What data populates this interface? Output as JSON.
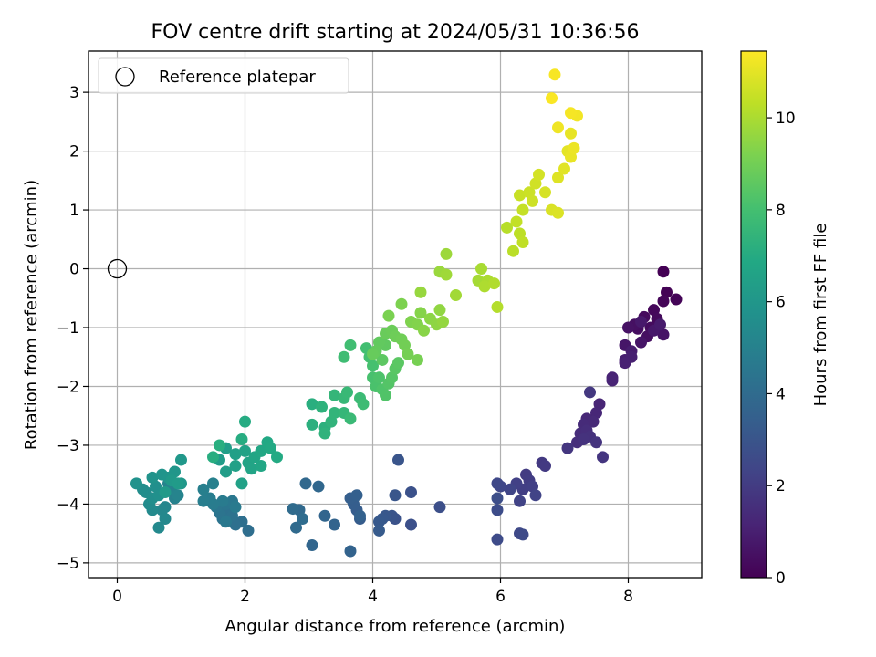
{
  "chart_data": {
    "type": "scatter",
    "title": "FOV centre drift starting at 2024/05/31 10:36:56",
    "xlabel": "Angular distance from reference (arcmin)",
    "ylabel": "Rotation from reference (arcmin)",
    "xlim": [
      -0.45,
      9.15
    ],
    "ylim": [
      -5.25,
      3.7
    ],
    "xticks": [
      0,
      2,
      4,
      6,
      8
    ],
    "yticks": [
      -5,
      -4,
      -3,
      -2,
      -1,
      0,
      1,
      2,
      3
    ],
    "grid": true,
    "legend": {
      "position": "top-left",
      "entries": [
        "Reference platepar"
      ]
    },
    "colorbar": {
      "label": "Hours from first FF file",
      "range": [
        0,
        11.45
      ],
      "ticks": [
        0,
        2,
        4,
        6,
        8,
        10
      ],
      "colormap": "viridis"
    },
    "reference_point": {
      "name": "Reference platepar",
      "x": 0,
      "y": 0
    },
    "points": [
      [
        8.55,
        -0.05,
        0.0
      ],
      [
        8.6,
        -0.4,
        0.05
      ],
      [
        8.75,
        -0.52,
        0.1
      ],
      [
        8.55,
        -0.55,
        0.15
      ],
      [
        8.4,
        -0.7,
        0.2
      ],
      [
        8.45,
        -0.85,
        0.25
      ],
      [
        8.25,
        -0.82,
        0.3
      ],
      [
        8.35,
        -1.0,
        0.35
      ],
      [
        8.15,
        -1.02,
        0.4
      ],
      [
        8.3,
        -1.15,
        0.45
      ],
      [
        8.1,
        -0.95,
        0.5
      ],
      [
        8.0,
        -1.0,
        0.55
      ],
      [
        8.55,
        -1.12,
        0.6
      ],
      [
        8.2,
        -1.25,
        0.65
      ],
      [
        7.95,
        -1.3,
        0.7
      ],
      [
        8.4,
        -1.05,
        0.75
      ],
      [
        8.2,
        -0.9,
        0.8
      ],
      [
        8.5,
        -0.95,
        0.85
      ],
      [
        8.05,
        -1.4,
        0.9
      ],
      [
        7.95,
        -1.55,
        0.95
      ],
      [
        8.05,
        -1.5,
        1.0
      ],
      [
        7.95,
        -1.6,
        1.05
      ],
      [
        7.75,
        -1.85,
        1.1
      ],
      [
        7.75,
        -1.9,
        1.15
      ],
      [
        7.55,
        -2.3,
        1.2
      ],
      [
        7.5,
        -2.45,
        1.25
      ],
      [
        7.35,
        -2.55,
        1.3
      ],
      [
        7.45,
        -2.6,
        1.35
      ],
      [
        7.3,
        -2.65,
        1.4
      ],
      [
        7.25,
        -2.8,
        1.45
      ],
      [
        7.35,
        -2.75,
        1.5
      ],
      [
        7.2,
        -2.95,
        1.55
      ],
      [
        7.4,
        -2.85,
        1.6
      ],
      [
        7.3,
        -2.9,
        1.65
      ],
      [
        7.5,
        -2.95,
        1.7
      ],
      [
        7.6,
        -3.2,
        1.75
      ],
      [
        7.05,
        -3.05,
        1.8
      ],
      [
        7.4,
        -2.1,
        1.85
      ],
      [
        6.65,
        -3.3,
        1.9
      ],
      [
        6.7,
        -3.35,
        1.95
      ],
      [
        6.4,
        -3.5,
        2.0
      ],
      [
        6.45,
        -3.6,
        2.05
      ],
      [
        6.35,
        -3.75,
        2.1
      ],
      [
        6.5,
        -3.7,
        2.15
      ],
      [
        6.25,
        -3.65,
        2.2
      ],
      [
        6.3,
        -3.95,
        2.25
      ],
      [
        6.55,
        -3.85,
        2.3
      ],
      [
        6.15,
        -3.75,
        2.35
      ],
      [
        6.0,
        -3.7,
        2.4
      ],
      [
        5.95,
        -3.65,
        2.45
      ],
      [
        6.3,
        -4.5,
        2.5
      ],
      [
        6.35,
        -4.52,
        2.55
      ],
      [
        5.95,
        -4.6,
        2.6
      ],
      [
        5.95,
        -4.1,
        2.65
      ],
      [
        5.95,
        -3.9,
        2.7
      ],
      [
        5.05,
        -4.05,
        2.75
      ],
      [
        4.6,
        -4.35,
        2.8
      ],
      [
        4.6,
        -3.8,
        2.85
      ],
      [
        4.35,
        -4.25,
        2.9
      ],
      [
        4.3,
        -4.2,
        2.95
      ],
      [
        4.4,
        -3.25,
        3.0
      ],
      [
        4.35,
        -3.85,
        3.05
      ],
      [
        4.2,
        -4.2,
        3.1
      ],
      [
        4.15,
        -4.25,
        3.15
      ],
      [
        4.1,
        -4.3,
        3.2
      ],
      [
        4.1,
        -4.45,
        3.25
      ],
      [
        3.8,
        -4.25,
        3.3
      ],
      [
        3.75,
        -4.1,
        3.35
      ],
      [
        3.7,
        -4.0,
        3.4
      ],
      [
        3.65,
        -3.9,
        3.45
      ],
      [
        3.75,
        -3.85,
        3.5
      ],
      [
        3.8,
        -4.2,
        3.55
      ],
      [
        3.65,
        -4.8,
        3.6
      ],
      [
        3.4,
        -4.35,
        3.65
      ],
      [
        3.25,
        -4.2,
        3.7
      ],
      [
        3.05,
        -4.7,
        3.75
      ],
      [
        3.15,
        -3.7,
        3.8
      ],
      [
        2.95,
        -3.65,
        3.85
      ],
      [
        2.85,
        -4.1,
        3.9
      ],
      [
        2.8,
        -4.4,
        3.95
      ],
      [
        2.75,
        -4.08,
        4.0
      ],
      [
        2.9,
        -4.25,
        4.05
      ],
      [
        2.05,
        -4.45,
        4.1
      ],
      [
        1.95,
        -4.3,
        4.15
      ],
      [
        1.85,
        -4.35,
        4.2
      ],
      [
        1.75,
        -4.1,
        4.25
      ],
      [
        1.8,
        -4.2,
        4.3
      ],
      [
        1.65,
        -4.25,
        4.35
      ],
      [
        1.6,
        -4.15,
        4.4
      ],
      [
        1.7,
        -4.0,
        4.45
      ],
      [
        1.55,
        -4.05,
        4.5
      ],
      [
        1.8,
        -3.95,
        4.55
      ],
      [
        1.7,
        -4.3,
        4.6
      ],
      [
        1.85,
        -4.05,
        4.65
      ],
      [
        1.65,
        -3.95,
        4.7
      ],
      [
        1.5,
        -4.0,
        4.75
      ],
      [
        1.45,
        -3.9,
        4.8
      ],
      [
        1.35,
        -3.95,
        4.85
      ],
      [
        1.35,
        -3.75,
        4.9
      ],
      [
        1.5,
        -3.65,
        4.95
      ],
      [
        0.9,
        -3.9,
        5.0
      ],
      [
        0.85,
        -3.75,
        5.05
      ],
      [
        0.8,
        -3.65,
        5.1
      ],
      [
        0.95,
        -3.85,
        5.15
      ],
      [
        0.75,
        -4.05,
        5.2
      ],
      [
        0.7,
        -4.1,
        5.25
      ],
      [
        0.75,
        -4.25,
        5.3
      ],
      [
        0.65,
        -4.4,
        5.35
      ],
      [
        0.55,
        -4.1,
        5.4
      ],
      [
        0.5,
        -4.0,
        5.45
      ],
      [
        0.45,
        -3.8,
        5.5
      ],
      [
        0.4,
        -3.75,
        5.55
      ],
      [
        0.55,
        -3.9,
        5.6
      ],
      [
        0.6,
        -3.7,
        5.65
      ],
      [
        0.65,
        -3.85,
        5.7
      ],
      [
        0.3,
        -3.65,
        5.75
      ],
      [
        0.55,
        -3.55,
        5.8
      ],
      [
        0.7,
        -3.5,
        5.85
      ],
      [
        0.8,
        -3.55,
        5.9
      ],
      [
        0.9,
        -3.45,
        5.95
      ],
      [
        1.0,
        -3.65,
        6.0
      ],
      [
        1.0,
        -3.25,
        6.05
      ],
      [
        0.85,
        -3.6,
        6.1
      ],
      [
        0.75,
        -3.8,
        6.15
      ],
      [
        0.95,
        -3.65,
        6.2
      ],
      [
        1.6,
        -3.25,
        6.25
      ],
      [
        1.7,
        -3.45,
        6.3
      ],
      [
        1.7,
        -3.05,
        6.35
      ],
      [
        1.85,
        -3.15,
        6.4
      ],
      [
        1.85,
        -3.35,
        6.45
      ],
      [
        1.95,
        -3.65,
        6.5
      ],
      [
        2.0,
        -3.1,
        6.55
      ],
      [
        2.05,
        -3.3,
        6.6
      ],
      [
        2.1,
        -3.4,
        6.65
      ],
      [
        2.15,
        -3.2,
        6.7
      ],
      [
        2.25,
        -3.35,
        6.75
      ],
      [
        2.25,
        -3.1,
        6.8
      ],
      [
        2.35,
        -2.95,
        6.85
      ],
      [
        2.4,
        -3.05,
        6.9
      ],
      [
        2.5,
        -3.2,
        6.95
      ],
      [
        2.0,
        -2.6,
        7.0
      ],
      [
        1.95,
        -2.9,
        7.05
      ],
      [
        1.5,
        -3.2,
        7.1
      ],
      [
        1.6,
        -3.0,
        7.15
      ],
      [
        3.05,
        -2.3,
        7.15
      ],
      [
        3.05,
        -2.65,
        7.2
      ],
      [
        3.25,
        -2.7,
        7.25
      ],
      [
        3.2,
        -2.35,
        7.3
      ],
      [
        3.25,
        -2.8,
        7.35
      ],
      [
        3.35,
        -2.6,
        7.4
      ],
      [
        3.4,
        -2.45,
        7.45
      ],
      [
        3.4,
        -2.15,
        7.5
      ],
      [
        3.55,
        -2.45,
        7.55
      ],
      [
        3.55,
        -2.2,
        7.6
      ],
      [
        3.6,
        -2.1,
        7.65
      ],
      [
        3.65,
        -2.55,
        7.7
      ],
      [
        3.8,
        -2.2,
        7.75
      ],
      [
        3.85,
        -2.3,
        7.8
      ],
      [
        3.55,
        -1.5,
        7.85
      ],
      [
        3.65,
        -1.3,
        7.9
      ],
      [
        3.9,
        -1.35,
        7.95
      ],
      [
        3.95,
        -1.5,
        8.0
      ],
      [
        4.0,
        -1.65,
        8.05
      ],
      [
        4.0,
        -1.85,
        8.1
      ],
      [
        4.05,
        -2.0,
        8.15
      ],
      [
        4.1,
        -1.85,
        8.2
      ],
      [
        4.15,
        -2.05,
        8.25
      ],
      [
        4.2,
        -2.15,
        8.3
      ],
      [
        4.25,
        -1.95,
        8.35
      ],
      [
        4.3,
        -1.85,
        8.4
      ],
      [
        4.35,
        -1.7,
        8.45
      ],
      [
        4.4,
        -1.6,
        8.5
      ],
      [
        4.15,
        -1.55,
        8.55
      ],
      [
        4.2,
        -1.3,
        8.6
      ],
      [
        4.1,
        -1.25,
        8.65
      ],
      [
        4.05,
        -1.4,
        8.7
      ],
      [
        4.0,
        -1.45,
        8.75
      ],
      [
        4.2,
        -1.1,
        8.8
      ],
      [
        4.3,
        -1.05,
        8.85
      ],
      [
        4.35,
        -1.15,
        8.9
      ],
      [
        4.45,
        -1.2,
        8.95
      ],
      [
        4.5,
        -1.3,
        9.0
      ],
      [
        4.55,
        -1.45,
        9.05
      ],
      [
        4.7,
        -1.55,
        9.1
      ],
      [
        4.25,
        -0.8,
        9.15
      ],
      [
        4.45,
        -0.6,
        9.2
      ],
      [
        4.6,
        -0.9,
        9.25
      ],
      [
        4.7,
        -0.95,
        9.3
      ],
      [
        4.75,
        -0.75,
        9.35
      ],
      [
        4.8,
        -1.05,
        9.4
      ],
      [
        4.9,
        -0.85,
        9.45
      ],
      [
        5.0,
        -0.95,
        9.5
      ],
      [
        5.05,
        -0.7,
        9.55
      ],
      [
        5.1,
        -0.9,
        9.6
      ],
      [
        4.75,
        -0.4,
        9.65
      ],
      [
        5.05,
        -0.05,
        9.7
      ],
      [
        5.15,
        0.25,
        9.75
      ],
      [
        5.15,
        -0.1,
        9.8
      ],
      [
        5.3,
        -0.45,
        9.85
      ],
      [
        5.65,
        -0.2,
        9.9
      ],
      [
        5.7,
        0.0,
        9.95
      ],
      [
        5.8,
        -0.2,
        10.0
      ],
      [
        5.75,
        -0.3,
        10.05
      ],
      [
        5.9,
        -0.25,
        10.1
      ],
      [
        5.95,
        -0.65,
        10.15
      ],
      [
        6.1,
        0.7,
        10.2
      ],
      [
        6.2,
        0.3,
        10.25
      ],
      [
        6.3,
        0.6,
        10.3
      ],
      [
        6.35,
        0.45,
        10.35
      ],
      [
        6.25,
        0.8,
        10.4
      ],
      [
        6.35,
        1.0,
        10.45
      ],
      [
        6.3,
        1.25,
        10.5
      ],
      [
        6.45,
        1.3,
        10.55
      ],
      [
        6.5,
        1.15,
        10.6
      ],
      [
        6.55,
        1.45,
        10.65
      ],
      [
        6.6,
        1.6,
        10.7
      ],
      [
        6.7,
        1.3,
        10.75
      ],
      [
        6.8,
        1.0,
        10.8
      ],
      [
        6.9,
        0.95,
        10.85
      ],
      [
        6.9,
        1.55,
        10.9
      ],
      [
        7.0,
        1.7,
        10.95
      ],
      [
        7.05,
        2.0,
        11.0
      ],
      [
        7.1,
        2.3,
        11.05
      ],
      [
        7.1,
        1.9,
        11.1
      ],
      [
        7.15,
        2.05,
        11.15
      ],
      [
        6.9,
        2.4,
        11.2
      ],
      [
        7.2,
        2.6,
        11.25
      ],
      [
        7.1,
        2.65,
        11.3
      ],
      [
        6.85,
        3.3,
        11.35
      ],
      [
        6.8,
        2.9,
        11.4
      ]
    ]
  }
}
